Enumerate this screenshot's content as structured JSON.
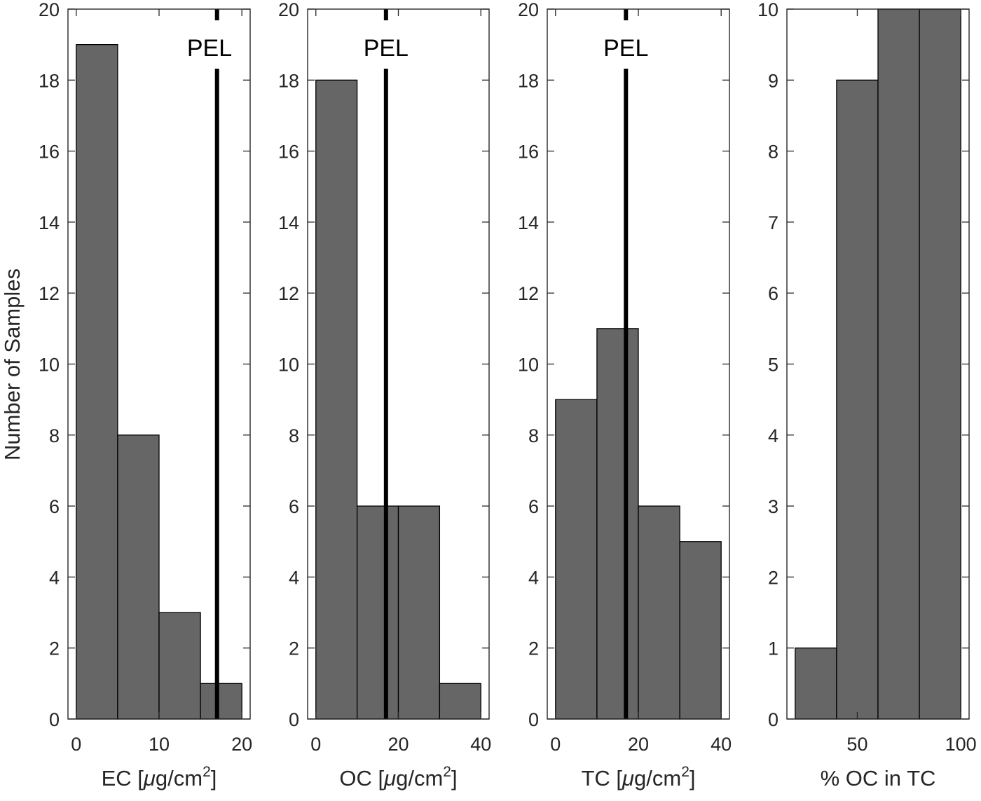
{
  "figure": {
    "ylabel": "Number of Samples",
    "bar_color": "#666666",
    "edge_color": "#000000",
    "ref_line_color": "#000000"
  },
  "chart_data": [
    {
      "type": "bar",
      "subtype": "histogram",
      "title": "",
      "xlabel": "EC [μg/cm²]",
      "xlabel_parts": [
        "EC [",
        "μ",
        "g/cm",
        "2",
        "]"
      ],
      "ylabel": "Number of Samples",
      "bin_edges": [
        0,
        5,
        10,
        15,
        20
      ],
      "categories": [
        "0-5",
        "5-10",
        "10-15",
        "15-20"
      ],
      "values": [
        19,
        8,
        3,
        1
      ],
      "xlim": [
        -1,
        21
      ],
      "ylim": [
        0,
        20
      ],
      "xticks": [
        0,
        10,
        20
      ],
      "yticks": [
        0,
        2,
        4,
        6,
        8,
        10,
        12,
        14,
        16,
        18,
        20
      ],
      "grid": false,
      "reference_line": {
        "label": "PEL",
        "x": 17
      }
    },
    {
      "type": "bar",
      "subtype": "histogram",
      "title": "",
      "xlabel": "OC [μg/cm²]",
      "xlabel_parts": [
        "OC [",
        "μ",
        "g/cm",
        "2",
        "]"
      ],
      "ylabel": "",
      "bin_edges": [
        0,
        10,
        20,
        30,
        40
      ],
      "categories": [
        "0-10",
        "10-20",
        "20-30",
        "30-40"
      ],
      "values": [
        18,
        6,
        6,
        1
      ],
      "xlim": [
        -2,
        42
      ],
      "ylim": [
        0,
        20
      ],
      "xticks": [
        0,
        20,
        40
      ],
      "yticks": [
        0,
        2,
        4,
        6,
        8,
        10,
        12,
        14,
        16,
        18,
        20
      ],
      "grid": false,
      "reference_line": {
        "label": "PEL",
        "x": 17
      }
    },
    {
      "type": "bar",
      "subtype": "histogram",
      "title": "",
      "xlabel": "TC [μg/cm²]",
      "xlabel_parts": [
        "TC [",
        "μ",
        "g/cm",
        "2",
        "]"
      ],
      "ylabel": "",
      "bin_edges": [
        0,
        10,
        20,
        30,
        40
      ],
      "categories": [
        "0-10",
        "10-20",
        "20-30",
        "30-40"
      ],
      "values": [
        9,
        11,
        6,
        5
      ],
      "xlim": [
        -2,
        42
      ],
      "ylim": [
        0,
        20
      ],
      "xticks": [
        0,
        20,
        40
      ],
      "yticks": [
        0,
        2,
        4,
        6,
        8,
        10,
        12,
        14,
        16,
        18,
        20
      ],
      "grid": false,
      "reference_line": {
        "label": "PEL",
        "x": 17
      }
    },
    {
      "type": "bar",
      "subtype": "histogram",
      "title": "",
      "xlabel": "% OC in TC",
      "xlabel_parts": [
        "% OC in TC"
      ],
      "ylabel": "",
      "bin_edges": [
        20,
        40,
        60,
        80,
        100
      ],
      "categories": [
        "20-40",
        "40-60",
        "60-80",
        "80-100"
      ],
      "values": [
        1,
        9,
        10,
        10
      ],
      "values_note": "bars at 60-80 and 80-100 reach the top of the axis (≥10)",
      "xlim": [
        16,
        104
      ],
      "ylim": [
        0,
        10
      ],
      "xticks": [
        50,
        100
      ],
      "yticks": [
        0,
        1,
        2,
        3,
        4,
        5,
        6,
        7,
        8,
        9,
        10
      ],
      "grid": false,
      "reference_line": null
    }
  ]
}
